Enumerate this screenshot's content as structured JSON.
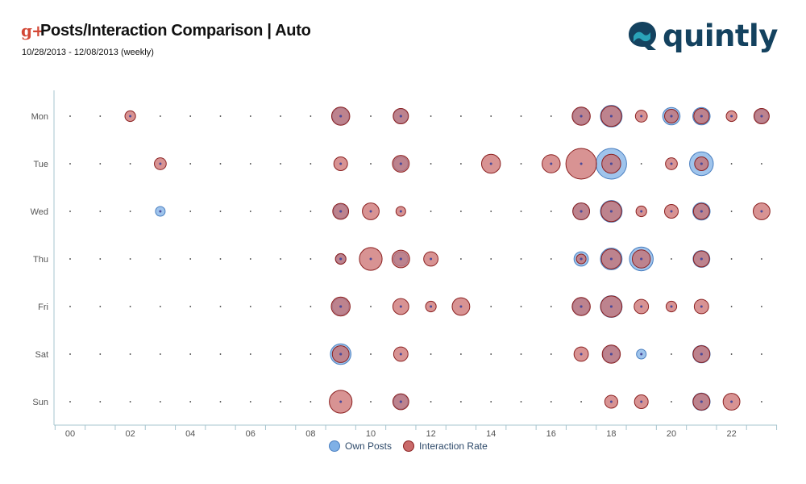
{
  "header": {
    "icon": "google-plus-icon",
    "title": "Posts/Interaction Comparison | Auto",
    "subtitle": "10/28/2013 - 12/08/2013 (weekly)"
  },
  "logo": {
    "text": "quintly",
    "color": "#14425f"
  },
  "colors": {
    "own_posts_fill": "#7fb0e6",
    "own_posts_stroke": "#4a7fc0",
    "interaction_fill": "#c96a6a",
    "interaction_stroke": "#8b2020",
    "axis": "#a7c5cf",
    "dot": "#333333"
  },
  "chart_data": {
    "type": "scatter",
    "title": "Posts/Interaction Comparison | Auto",
    "subtitle": "10/28/2013 - 12/08/2013 (weekly)",
    "x_tick_labels": [
      "00",
      "02",
      "04",
      "06",
      "08",
      "10",
      "12",
      "14",
      "16",
      "18",
      "20",
      "22"
    ],
    "xlim": [
      0,
      23
    ],
    "categories": [
      "Mon",
      "Tue",
      "Wed",
      "Thu",
      "Fri",
      "Sat",
      "Sun"
    ],
    "legend": {
      "placement": "bottom",
      "items": [
        "Own Posts",
        "Interaction Rate"
      ]
    },
    "series": [
      {
        "name": "Own Posts",
        "points": [
          {
            "day": "Mon",
            "hour": 9,
            "size": 0.3
          },
          {
            "day": "Mon",
            "hour": 11,
            "size": 0.22
          },
          {
            "day": "Mon",
            "hour": 17,
            "size": 0.3
          },
          {
            "day": "Mon",
            "hour": 18,
            "size": 0.5
          },
          {
            "day": "Mon",
            "hour": 20,
            "size": 0.32
          },
          {
            "day": "Mon",
            "hour": 21,
            "size": 0.32
          },
          {
            "day": "Mon",
            "hour": 23,
            "size": 0.2
          },
          {
            "day": "Tue",
            "hour": 11,
            "size": 0.22
          },
          {
            "day": "Tue",
            "hour": 18,
            "size": 1.0
          },
          {
            "day": "Tue",
            "hour": 21,
            "size": 0.6
          },
          {
            "day": "Wed",
            "hour": 3,
            "size": 0.1
          },
          {
            "day": "Wed",
            "hour": 9,
            "size": 0.22
          },
          {
            "day": "Wed",
            "hour": 17,
            "size": 0.3
          },
          {
            "day": "Wed",
            "hour": 18,
            "size": 0.5
          },
          {
            "day": "Wed",
            "hour": 21,
            "size": 0.32
          },
          {
            "day": "Thu",
            "hour": 9,
            "size": 0.1
          },
          {
            "day": "Thu",
            "hour": 11,
            "size": 0.22
          },
          {
            "day": "Thu",
            "hour": 17,
            "size": 0.22
          },
          {
            "day": "Thu",
            "hour": 18,
            "size": 0.5
          },
          {
            "day": "Thu",
            "hour": 19,
            "size": 0.6
          },
          {
            "day": "Thu",
            "hour": 21,
            "size": 0.3
          },
          {
            "day": "Fri",
            "hour": 9,
            "size": 0.3
          },
          {
            "day": "Fri",
            "hour": 17,
            "size": 0.3
          },
          {
            "day": "Fri",
            "hour": 18,
            "size": 0.5
          },
          {
            "day": "Sat",
            "hour": 9,
            "size": 0.45
          },
          {
            "day": "Sat",
            "hour": 18,
            "size": 0.3
          },
          {
            "day": "Sat",
            "hour": 19,
            "size": 0.1
          },
          {
            "day": "Sat",
            "hour": 21,
            "size": 0.32
          },
          {
            "day": "Sun",
            "hour": 11,
            "size": 0.22
          },
          {
            "day": "Sun",
            "hour": 21,
            "size": 0.32
          }
        ]
      },
      {
        "name": "Interaction Rate",
        "points": [
          {
            "day": "Mon",
            "hour": 2,
            "size": 0.12
          },
          {
            "day": "Mon",
            "hour": 9,
            "size": 0.35
          },
          {
            "day": "Mon",
            "hour": 11,
            "size": 0.25
          },
          {
            "day": "Mon",
            "hour": 17,
            "size": 0.35
          },
          {
            "day": "Mon",
            "hour": 18,
            "size": 0.45
          },
          {
            "day": "Mon",
            "hour": 19,
            "size": 0.15
          },
          {
            "day": "Mon",
            "hour": 20,
            "size": 0.2
          },
          {
            "day": "Mon",
            "hour": 21,
            "size": 0.25
          },
          {
            "day": "Mon",
            "hour": 22,
            "size": 0.12
          },
          {
            "day": "Mon",
            "hour": 23,
            "size": 0.25
          },
          {
            "day": "Tue",
            "hour": 3,
            "size": 0.15
          },
          {
            "day": "Tue",
            "hour": 9,
            "size": 0.2
          },
          {
            "day": "Tue",
            "hour": 11,
            "size": 0.3
          },
          {
            "day": "Tue",
            "hour": 14,
            "size": 0.38
          },
          {
            "day": "Tue",
            "hour": 16,
            "size": 0.35
          },
          {
            "day": "Tue",
            "hour": 17,
            "size": 1.0
          },
          {
            "day": "Tue",
            "hour": 18,
            "size": 0.38
          },
          {
            "day": "Tue",
            "hour": 20,
            "size": 0.15
          },
          {
            "day": "Tue",
            "hour": 21,
            "size": 0.2
          },
          {
            "day": "Wed",
            "hour": 9,
            "size": 0.27
          },
          {
            "day": "Wed",
            "hour": 10,
            "size": 0.3
          },
          {
            "day": "Wed",
            "hour": 11,
            "size": 0.1
          },
          {
            "day": "Wed",
            "hour": 17,
            "size": 0.3
          },
          {
            "day": "Wed",
            "hour": 18,
            "size": 0.45
          },
          {
            "day": "Wed",
            "hour": 19,
            "size": 0.12
          },
          {
            "day": "Wed",
            "hour": 20,
            "size": 0.2
          },
          {
            "day": "Wed",
            "hour": 21,
            "size": 0.27
          },
          {
            "day": "Wed",
            "hour": 23,
            "size": 0.3
          },
          {
            "day": "Thu",
            "hour": 9,
            "size": 0.12
          },
          {
            "day": "Thu",
            "hour": 10,
            "size": 0.55
          },
          {
            "day": "Thu",
            "hour": 11,
            "size": 0.33
          },
          {
            "day": "Thu",
            "hour": 12,
            "size": 0.22
          },
          {
            "day": "Thu",
            "hour": 17,
            "size": 0.1
          },
          {
            "day": "Thu",
            "hour": 18,
            "size": 0.42
          },
          {
            "day": "Thu",
            "hour": 19,
            "size": 0.35
          },
          {
            "day": "Thu",
            "hour": 21,
            "size": 0.27
          },
          {
            "day": "Fri",
            "hour": 9,
            "size": 0.38
          },
          {
            "day": "Fri",
            "hour": 11,
            "size": 0.27
          },
          {
            "day": "Fri",
            "hour": 12,
            "size": 0.12
          },
          {
            "day": "Fri",
            "hour": 13,
            "size": 0.33
          },
          {
            "day": "Fri",
            "hour": 17,
            "size": 0.35
          },
          {
            "day": "Fri",
            "hour": 18,
            "size": 0.48
          },
          {
            "day": "Fri",
            "hour": 19,
            "size": 0.22
          },
          {
            "day": "Fri",
            "hour": 20,
            "size": 0.12
          },
          {
            "day": "Fri",
            "hour": 21,
            "size": 0.22
          },
          {
            "day": "Sat",
            "hour": 9,
            "size": 0.3
          },
          {
            "day": "Sat",
            "hour": 11,
            "size": 0.22
          },
          {
            "day": "Sat",
            "hour": 17,
            "size": 0.22
          },
          {
            "day": "Sat",
            "hour": 18,
            "size": 0.35
          },
          {
            "day": "Sat",
            "hour": 21,
            "size": 0.3
          },
          {
            "day": "Sun",
            "hour": 9,
            "size": 0.55
          },
          {
            "day": "Sun",
            "hour": 11,
            "size": 0.27
          },
          {
            "day": "Sun",
            "hour": 18,
            "size": 0.18
          },
          {
            "day": "Sun",
            "hour": 19,
            "size": 0.2
          },
          {
            "day": "Sun",
            "hour": 21,
            "size": 0.3
          },
          {
            "day": "Sun",
            "hour": 22,
            "size": 0.3
          }
        ]
      }
    ]
  }
}
